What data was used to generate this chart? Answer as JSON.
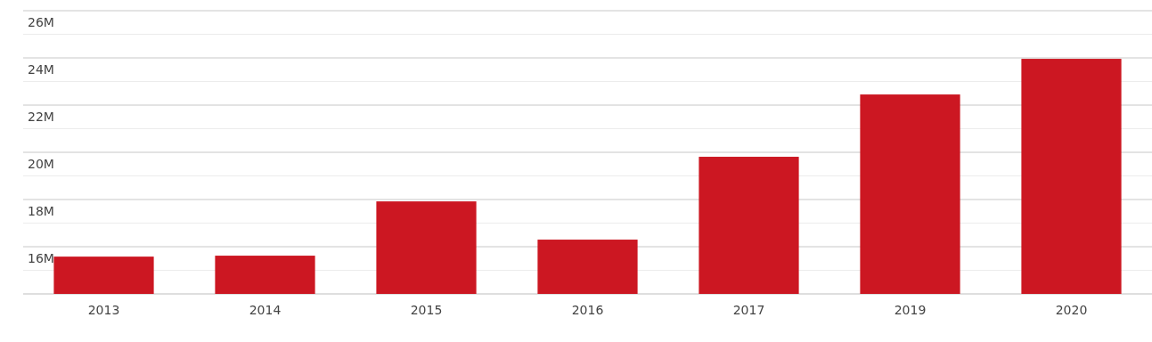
{
  "chart_data": {
    "type": "bar",
    "categories": [
      "2013",
      "2014",
      "2015",
      "2016",
      "2017",
      "2019",
      "2020"
    ],
    "values": [
      15.58,
      15.62,
      17.92,
      16.3,
      19.81,
      22.45,
      23.96
    ],
    "color": "#cc1722",
    "ylim": [
      14,
      26
    ],
    "yticks": [
      {
        "value": 14,
        "label": null
      },
      {
        "value": 15,
        "label": null
      },
      {
        "value": 16,
        "label": "16M"
      },
      {
        "value": 17,
        "label": null
      },
      {
        "value": 18,
        "label": "18M"
      },
      {
        "value": 19,
        "label": null
      },
      {
        "value": 20,
        "label": "20M"
      },
      {
        "value": 21,
        "label": null
      },
      {
        "value": 22,
        "label": "22M"
      },
      {
        "value": 23,
        "label": null
      },
      {
        "value": 24,
        "label": "24M"
      },
      {
        "value": 25,
        "label": null
      },
      {
        "value": 26,
        "label": "26M"
      }
    ],
    "grid": "y"
  }
}
